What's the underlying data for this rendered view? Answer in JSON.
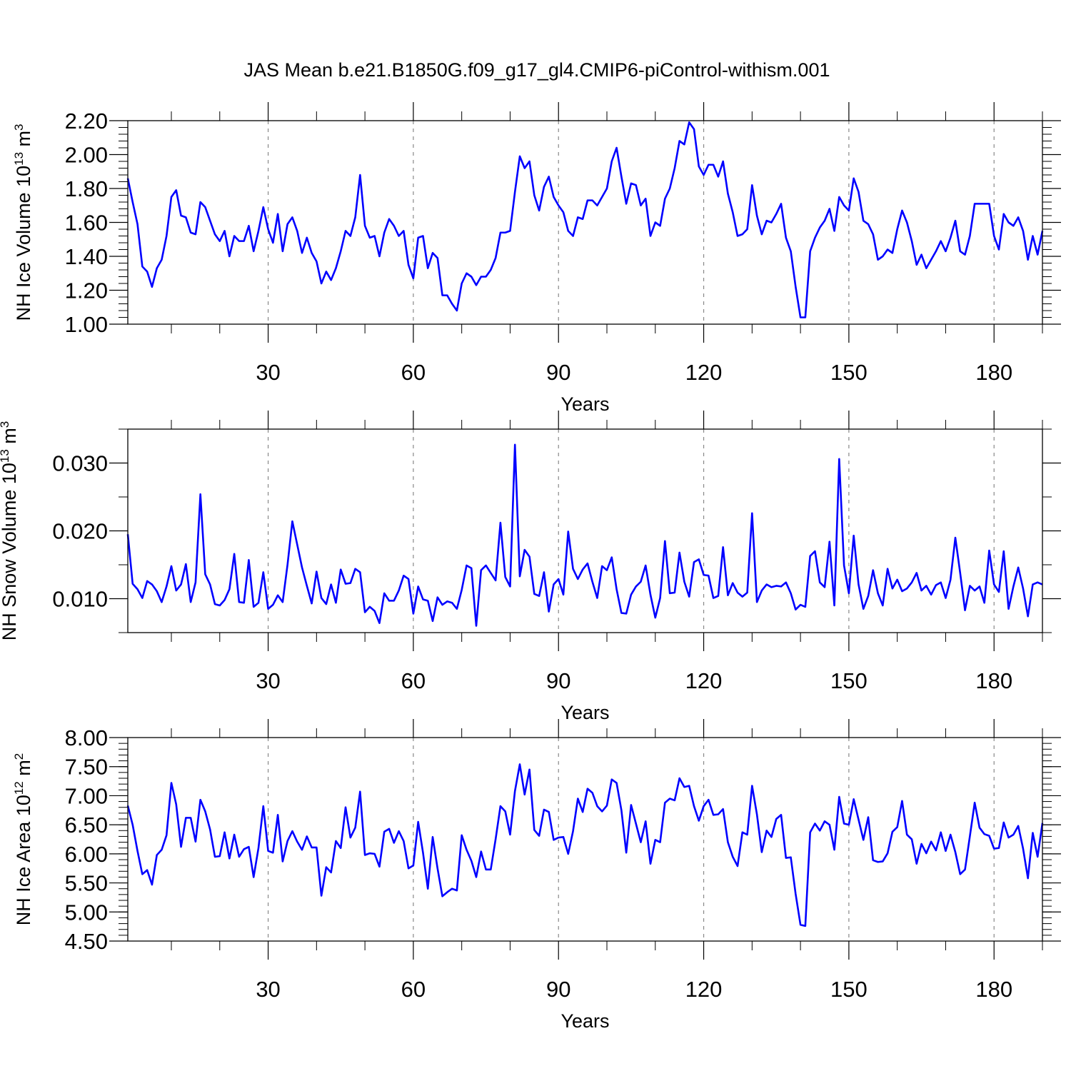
{
  "figure": {
    "title": "JAS Mean b.e21.B1850G.f09_g17_gl4.CMIP6-piControl-withism.001",
    "line_color": "#0000ff",
    "grid_color": "#888888"
  },
  "chart_data": [
    {
      "type": "line",
      "title": "NH Ice Volume",
      "ylabel": "NH Ice Volume 10",
      "ylabel_exp": "13",
      "ylabel_unit": " m",
      "ylabel_unit_exp": "3",
      "xlabel": "Years",
      "xlim": [
        1,
        190
      ],
      "ylim": [
        1.0,
        2.2
      ],
      "yticks": [
        1.0,
        1.2,
        1.4,
        1.6,
        1.8,
        2.0,
        2.2
      ],
      "ytick_labels": [
        "1.00",
        "1.20",
        "1.40",
        "1.60",
        "1.80",
        "2.00",
        "2.20"
      ],
      "yminor_step": 0.04,
      "xticks": [
        30,
        60,
        90,
        120,
        150,
        180
      ],
      "xtick_labels": [
        "30",
        "60",
        "90",
        "120",
        "150",
        "180"
      ],
      "xminor_step": 10,
      "series": [
        {
          "name": "NH Ice Volume",
          "x_start": 1,
          "values": [
            1.86,
            1.72,
            1.59,
            1.34,
            1.31,
            1.22,
            1.33,
            1.38,
            1.52,
            1.75,
            1.79,
            1.64,
            1.63,
            1.54,
            1.53,
            1.72,
            1.69,
            1.61,
            1.53,
            1.49,
            1.55,
            1.4,
            1.52,
            1.49,
            1.49,
            1.58,
            1.43,
            1.55,
            1.69,
            1.56,
            1.48,
            1.65,
            1.43,
            1.59,
            1.63,
            1.55,
            1.42,
            1.51,
            1.42,
            1.37,
            1.24,
            1.31,
            1.26,
            1.33,
            1.43,
            1.55,
            1.52,
            1.63,
            1.88,
            1.58,
            1.51,
            1.52,
            1.4,
            1.54,
            1.62,
            1.58,
            1.52,
            1.55,
            1.35,
            1.27,
            1.51,
            1.52,
            1.33,
            1.42,
            1.39,
            1.17,
            1.17,
            1.12,
            1.08,
            1.24,
            1.3,
            1.28,
            1.23,
            1.28,
            1.28,
            1.32,
            1.39,
            1.54,
            1.54,
            1.55,
            1.78,
            1.99,
            1.92,
            1.96,
            1.76,
            1.67,
            1.81,
            1.87,
            1.75,
            1.7,
            1.66,
            1.55,
            1.52,
            1.63,
            1.62,
            1.73,
            1.73,
            1.7,
            1.75,
            1.8,
            1.96,
            2.04,
            1.87,
            1.71,
            1.83,
            1.82,
            1.7,
            1.74,
            1.52,
            1.6,
            1.58,
            1.74,
            1.8,
            1.92,
            2.08,
            2.06,
            2.19,
            2.15,
            1.93,
            1.88,
            1.94,
            1.94,
            1.87,
            1.96,
            1.77,
            1.66,
            1.52,
            1.53,
            1.56,
            1.82,
            1.64,
            1.53,
            1.61,
            1.6,
            1.65,
            1.71,
            1.51,
            1.43,
            1.22,
            1.04,
            1.04,
            1.43,
            1.51,
            1.57,
            1.61,
            1.68,
            1.55,
            1.75,
            1.7,
            1.67,
            1.86,
            1.78,
            1.61,
            1.59,
            1.53,
            1.38,
            1.4,
            1.44,
            1.42,
            1.56,
            1.67,
            1.6,
            1.49,
            1.35,
            1.41,
            1.33,
            1.38,
            1.43,
            1.49,
            1.43,
            1.51,
            1.61,
            1.43,
            1.41,
            1.52,
            1.71,
            1.71,
            1.71,
            1.71,
            1.52,
            1.44,
            1.65,
            1.6,
            1.58,
            1.63,
            1.55,
            1.38,
            1.52,
            1.41,
            1.55
          ]
        }
      ]
    },
    {
      "type": "line",
      "title": "NH Snow Volume",
      "ylabel": "NH Snow Volume 10",
      "ylabel_exp": "13",
      "ylabel_unit": " m",
      "ylabel_unit_exp": "3",
      "xlabel": "Years",
      "xlim": [
        1,
        190
      ],
      "ylim": [
        0.005,
        0.035
      ],
      "yticks": [
        0.01,
        0.02,
        0.03
      ],
      "ytick_labels": [
        "0.010",
        "0.020",
        "0.030"
      ],
      "yminor_step": 0.005,
      "xticks": [
        30,
        60,
        90,
        120,
        150,
        180
      ],
      "xtick_labels": [
        "30",
        "60",
        "90",
        "120",
        "150",
        "180"
      ],
      "xminor_step": 10,
      "series": [
        {
          "name": "NH Snow Volume",
          "x_start": 1,
          "values": [
            0.0195,
            0.0122,
            0.0114,
            0.0101,
            0.0126,
            0.0121,
            0.0111,
            0.0095,
            0.0118,
            0.0148,
            0.0112,
            0.0121,
            0.0151,
            0.0095,
            0.0124,
            0.0254,
            0.0136,
            0.0121,
            0.0092,
            0.009,
            0.0098,
            0.0114,
            0.0166,
            0.0095,
            0.0094,
            0.0157,
            0.0088,
            0.0094,
            0.0139,
            0.0085,
            0.0091,
            0.0105,
            0.0095,
            0.015,
            0.0214,
            0.018,
            0.0146,
            0.0119,
            0.0093,
            0.014,
            0.0101,
            0.0092,
            0.0121,
            0.0094,
            0.0143,
            0.0122,
            0.0123,
            0.0144,
            0.0139,
            0.008,
            0.0088,
            0.0082,
            0.0064,
            0.0108,
            0.0097,
            0.0097,
            0.0112,
            0.0134,
            0.0129,
            0.0078,
            0.0118,
            0.0099,
            0.0097,
            0.0067,
            0.0102,
            0.0091,
            0.0096,
            0.0094,
            0.0085,
            0.0113,
            0.0149,
            0.0145,
            0.006,
            0.0142,
            0.0149,
            0.0138,
            0.0127,
            0.0212,
            0.0132,
            0.0118,
            0.0327,
            0.0133,
            0.0172,
            0.0162,
            0.0107,
            0.0104,
            0.0139,
            0.0081,
            0.0121,
            0.0129,
            0.0106,
            0.0199,
            0.0144,
            0.0129,
            0.0143,
            0.0152,
            0.0125,
            0.0101,
            0.0148,
            0.0142,
            0.0161,
            0.0114,
            0.0079,
            0.0078,
            0.0106,
            0.0118,
            0.0125,
            0.0149,
            0.0106,
            0.0072,
            0.0101,
            0.0185,
            0.0108,
            0.0109,
            0.0168,
            0.0125,
            0.0103,
            0.0154,
            0.0158,
            0.0135,
            0.0134,
            0.0101,
            0.0104,
            0.0176,
            0.0105,
            0.0123,
            0.0109,
            0.0103,
            0.0109,
            0.0226,
            0.0095,
            0.0112,
            0.0121,
            0.0117,
            0.0119,
            0.0118,
            0.0124,
            0.0108,
            0.0084,
            0.0091,
            0.0088,
            0.0163,
            0.017,
            0.0124,
            0.0117,
            0.0184,
            0.009,
            0.0306,
            0.0149,
            0.0108,
            0.0193,
            0.0121,
            0.0085,
            0.0104,
            0.0142,
            0.0108,
            0.009,
            0.0144,
            0.0115,
            0.0128,
            0.0111,
            0.0115,
            0.0124,
            0.0138,
            0.0112,
            0.0119,
            0.0106,
            0.012,
            0.0124,
            0.0101,
            0.0128,
            0.019,
            0.0138,
            0.0083,
            0.0119,
            0.0112,
            0.0118,
            0.0094,
            0.0171,
            0.0121,
            0.011,
            0.017,
            0.0085,
            0.0118,
            0.0146,
            0.0115,
            0.0074,
            0.0121,
            0.0124,
            0.0121
          ]
        }
      ]
    },
    {
      "type": "line",
      "title": "NH Ice Area",
      "ylabel": "NH Ice Area 10",
      "ylabel_exp": "12",
      "ylabel_unit": " m",
      "ylabel_unit_exp": "2",
      "xlabel": "Years",
      "xlim": [
        1,
        190
      ],
      "ylim": [
        4.5,
        8.0
      ],
      "yticks": [
        4.5,
        5.0,
        5.5,
        6.0,
        6.5,
        7.0,
        7.5,
        8.0
      ],
      "ytick_labels": [
        "4.50",
        "5.00",
        "5.50",
        "6.00",
        "6.50",
        "7.00",
        "7.50",
        "8.00"
      ],
      "yminor_step": 0.1,
      "xticks": [
        30,
        60,
        90,
        120,
        150,
        180
      ],
      "xtick_labels": [
        "30",
        "60",
        "90",
        "120",
        "150",
        "180"
      ],
      "xminor_step": 10,
      "series": [
        {
          "name": "NH Ice Area",
          "x_start": 1,
          "values": [
            6.83,
            6.5,
            6.05,
            5.65,
            5.72,
            5.47,
            5.98,
            6.07,
            6.32,
            7.22,
            6.85,
            6.12,
            6.62,
            6.62,
            6.21,
            6.93,
            6.73,
            6.42,
            5.95,
            5.96,
            6.37,
            5.92,
            6.33,
            5.95,
            6.08,
            6.12,
            5.6,
            6.1,
            6.82,
            6.05,
            6.02,
            6.67,
            5.87,
            6.22,
            6.39,
            6.21,
            6.07,
            6.3,
            6.11,
            6.11,
            5.28,
            5.77,
            5.68,
            6.22,
            6.1,
            6.8,
            6.28,
            6.45,
            7.07,
            5.98,
            6.01,
            6.0,
            5.78,
            6.38,
            6.43,
            6.19,
            6.39,
            6.22,
            5.75,
            5.8,
            6.55,
            6.02,
            5.4,
            6.29,
            5.75,
            5.27,
            5.34,
            5.4,
            5.37,
            6.32,
            6.07,
            5.88,
            5.6,
            6.04,
            5.73,
            5.73,
            6.25,
            6.82,
            6.73,
            6.33,
            7.08,
            7.54,
            7.02,
            7.45,
            6.41,
            6.31,
            6.76,
            6.72,
            6.24,
            6.28,
            6.29,
            6.0,
            6.39,
            6.95,
            6.72,
            7.12,
            7.05,
            6.82,
            6.73,
            6.83,
            7.28,
            7.22,
            6.75,
            6.02,
            6.84,
            6.52,
            6.2,
            6.56,
            5.83,
            6.24,
            6.2,
            6.88,
            6.95,
            6.92,
            7.3,
            7.15,
            7.17,
            6.82,
            6.57,
            6.82,
            6.93,
            6.67,
            6.68,
            6.77,
            6.2,
            5.95,
            5.79,
            6.37,
            6.33,
            7.17,
            6.68,
            6.03,
            6.4,
            6.29,
            6.6,
            6.67,
            5.93,
            5.94,
            5.31,
            4.78,
            4.76,
            6.37,
            6.52,
            6.4,
            6.56,
            6.5,
            6.07,
            6.98,
            6.52,
            6.5,
            6.94,
            6.59,
            6.24,
            6.63,
            5.89,
            5.86,
            5.87,
            6.01,
            6.38,
            6.46,
            6.91,
            6.33,
            6.25,
            5.83,
            6.17,
            6.01,
            6.21,
            6.06,
            6.37,
            6.05,
            6.33,
            6.03,
            5.65,
            5.73,
            6.3,
            6.88,
            6.45,
            6.34,
            6.31,
            6.09,
            6.1,
            6.54,
            6.28,
            6.33,
            6.48,
            6.09,
            5.58,
            6.36,
            5.95,
            6.53
          ]
        }
      ]
    }
  ]
}
